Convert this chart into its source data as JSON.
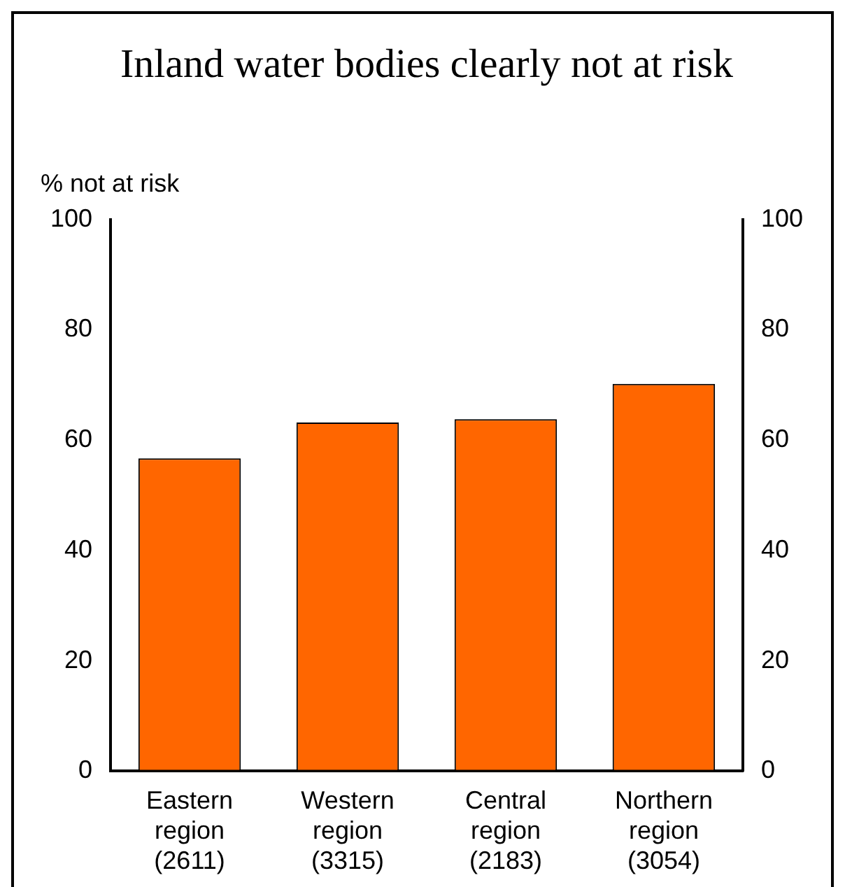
{
  "chart_data": {
    "type": "bar",
    "title": "Inland water bodies clearly not at risk",
    "ylabel": "% not at risk",
    "categories": [
      "Eastern\nregion\n(2611)",
      "Western\nregion\n(3315)",
      "Central\nregion\n(2183)",
      "Northern\nregion\n(3054)"
    ],
    "values": [
      56.7,
      63.2,
      63.8,
      70.2
    ],
    "color": "#ff6600",
    "ylim": [
      0,
      100
    ],
    "yticks": [
      0,
      20,
      40,
      60,
      80,
      100
    ],
    "y2lim": [
      0,
      100
    ],
    "y2ticks": [
      0,
      20,
      40,
      60,
      80,
      100
    ],
    "grid": false,
    "legend": false
  }
}
